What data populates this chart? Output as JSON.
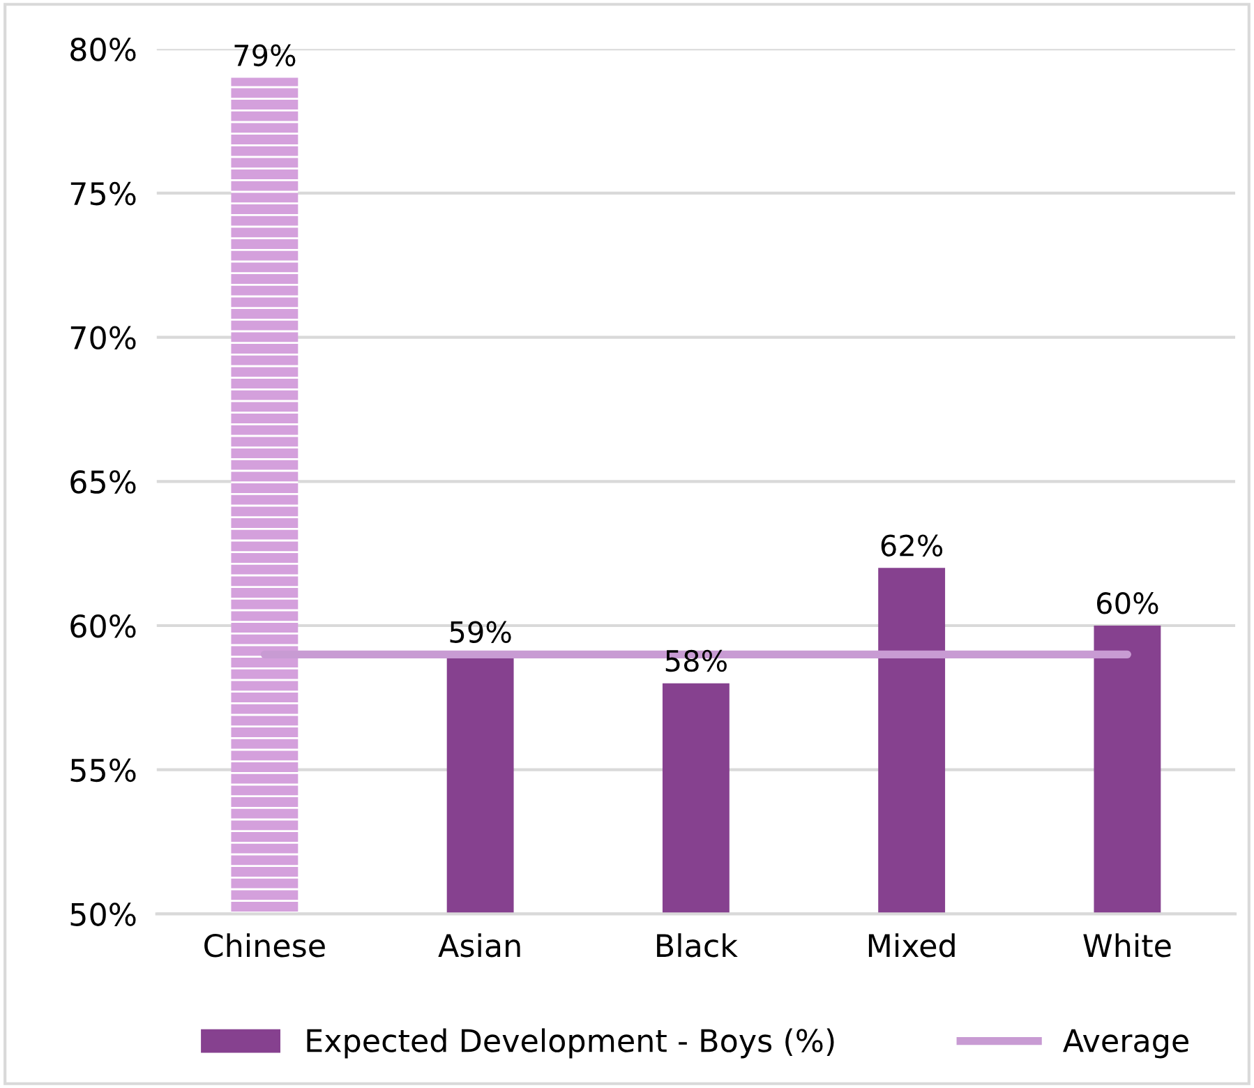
{
  "chart_data": {
    "type": "bar",
    "categories": [
      "Chinese",
      "Asian",
      "Black",
      "Mixed",
      "White"
    ],
    "series": [
      {
        "name": "Expected Development - Boys (%)",
        "color": "#86418f",
        "colors": [
          "#d4a0dc",
          "#86418f",
          "#86418f",
          "#86418f",
          "#86418f"
        ],
        "values": [
          79,
          59,
          58,
          62,
          60
        ],
        "value_labels": [
          "79%",
          "59%",
          "58%",
          "62%",
          "60%"
        ]
      },
      {
        "name": "Average",
        "type": "line",
        "color": "#c89bd3",
        "values": [
          59,
          59,
          59,
          59,
          59
        ]
      }
    ],
    "ylim": [
      50,
      80
    ],
    "yticks": [
      {
        "value": 50,
        "label": "50%"
      },
      {
        "value": 55,
        "label": "55%"
      },
      {
        "value": 60,
        "label": "60%"
      },
      {
        "value": 65,
        "label": "65%"
      },
      {
        "value": 70,
        "label": "70%"
      },
      {
        "value": 75,
        "label": "75%"
      },
      {
        "value": 80,
        "label": "80%"
      }
    ],
    "grid": "y",
    "legend": "bottom"
  }
}
